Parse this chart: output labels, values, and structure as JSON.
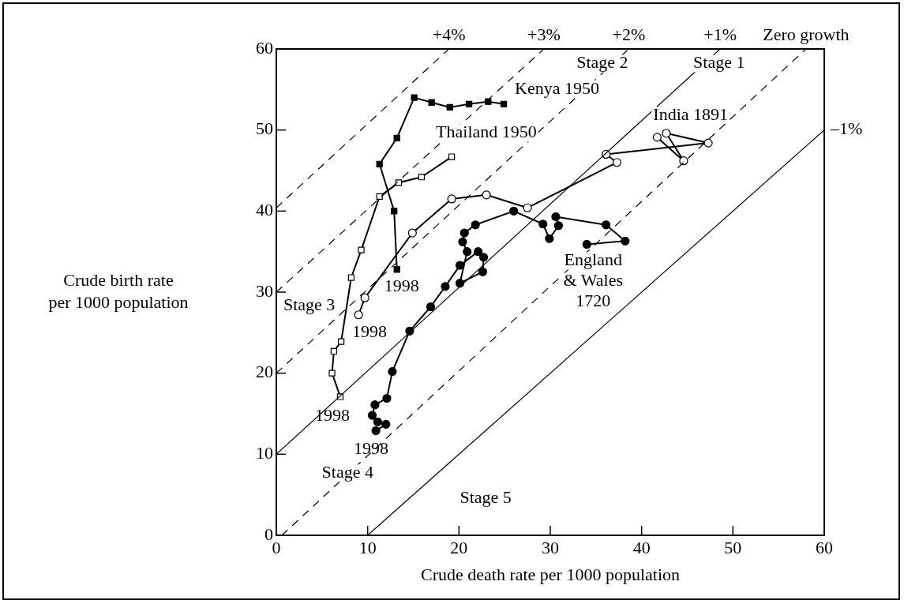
{
  "chart_data": {
    "type": "line",
    "xlabel": "Crude death rate per 1000 population",
    "ylabel": "Crude birth rate\nper 1000 population",
    "xlim": [
      0,
      60
    ],
    "ylim": [
      0,
      60
    ],
    "xticks": [
      0,
      10,
      20,
      30,
      40,
      50,
      60
    ],
    "yticks": [
      0,
      10,
      20,
      30,
      40,
      50,
      60
    ],
    "grid": false,
    "legend": false,
    "series": [
      {
        "name": "+4%",
        "color": "#000000",
        "line_style": "dashed",
        "marker": "none",
        "x": [
          0,
          18.9
        ],
        "values": [
          40.4,
          60
        ]
      },
      {
        "name": "+3%",
        "color": "#000000",
        "line_style": "dashed",
        "marker": "none",
        "x": [
          0,
          29.3
        ],
        "values": [
          30,
          60
        ]
      },
      {
        "name": "+2%",
        "color": "#000000",
        "line_style": "dashed",
        "marker": "none",
        "x": [
          0,
          38.6
        ],
        "values": [
          20,
          60
        ]
      },
      {
        "name": "+1%",
        "color": "#000000",
        "line_style": "solid",
        "marker": "none",
        "x": [
          0,
          48.6
        ],
        "values": [
          10,
          60
        ]
      },
      {
        "name": "Zero growth",
        "color": "#000000",
        "line_style": "dashed",
        "marker": "none",
        "x": [
          0.6,
          58
        ],
        "values": [
          0,
          60
        ]
      },
      {
        "name": "–1%",
        "color": "#000000",
        "line_style": "solid",
        "marker": "none",
        "x": [
          10,
          60
        ],
        "values": [
          0,
          50
        ]
      },
      {
        "name": "Kenya 1950",
        "color": "#000000",
        "line_style": "solid",
        "marker": "square",
        "x": [
          24.9,
          23.2,
          21.1,
          19.0,
          17.0,
          15.1,
          13.2,
          11.3,
          12.9,
          13.2
        ],
        "values": [
          53.2,
          53.5,
          53.2,
          52.8,
          53.4,
          54.0,
          49.0,
          45.8,
          40.0,
          32.8
        ]
      },
      {
        "name": "Thailand 1950",
        "color": "#000000",
        "colors": [
          "#ffffff",
          "#ffffff",
          "#ffffff",
          "#ffffff",
          "#ffffff",
          "#ffffff",
          "#ffffff",
          "#ffffff",
          "#ffffff",
          "#ffffff"
        ],
        "line_style": "solid",
        "marker": "square",
        "x": [
          19.2,
          15.9,
          13.4,
          11.3,
          9.3,
          8.2,
          7.1,
          6.3,
          6.1,
          7.0
        ],
        "values": [
          46.7,
          44.2,
          43.5,
          41.8,
          35.2,
          31.8,
          23.9,
          22.7,
          20.0,
          17.1
        ]
      },
      {
        "name": "India 1891",
        "color": "#000000",
        "colors": [
          "#ffffff",
          "#ffffff",
          "#ffffff",
          "#ffffff",
          "#ffffff",
          "#ffffff",
          "#ffffff",
          "#ffffff",
          "#ffffff",
          "#ffffff",
          "#ffffff",
          "#ffffff"
        ],
        "line_style": "solid",
        "marker": "circle",
        "x": [
          41.7,
          44.6,
          42.7,
          47.3,
          36.1,
          37.3,
          27.5,
          23.0,
          19.2,
          14.9,
          9.7,
          9.0
        ],
        "values": [
          49.1,
          46.2,
          49.6,
          48.4,
          47.0,
          46.0,
          40.4,
          42.0,
          41.5,
          37.3,
          29.3,
          27.2
        ]
      },
      {
        "name": "England\n& Wales\n1720",
        "color": "#000000",
        "line_style": "solid",
        "marker": "circle",
        "x": [
          34.0,
          38.2,
          36.1,
          30.6,
          30.9,
          29.9,
          29.2,
          26.0,
          21.8,
          20.6,
          20.4,
          20.9,
          20.1,
          22.6,
          22.7,
          22.1,
          20.1,
          18.5,
          16.9,
          14.6,
          12.7,
          12.1,
          10.8,
          10.5,
          11.1,
          12.0,
          10.9
        ],
        "values": [
          35.9,
          36.3,
          38.3,
          39.3,
          38.2,
          36.6,
          38.4,
          40.0,
          38.3,
          37.3,
          36.2,
          35.0,
          31.1,
          32.5,
          34.3,
          35.0,
          33.3,
          30.7,
          28.2,
          25.2,
          20.2,
          16.9,
          16.1,
          14.8,
          14.0,
          13.7,
          12.9
        ]
      }
    ],
    "annotations": [
      "Stage 2",
      "Stage 1",
      "Stage 3",
      "Stage 4",
      "Stage 5",
      {
        "text": "1998",
        "x": 13.2,
        "y": 32.8
      },
      {
        "text": "1998",
        "x": 7.0,
        "y": 17.1
      },
      {
        "text": "1998",
        "x": 9.0,
        "y": 27.2
      },
      {
        "text": "1998",
        "x": 10.9,
        "y": 12.9
      }
    ]
  }
}
